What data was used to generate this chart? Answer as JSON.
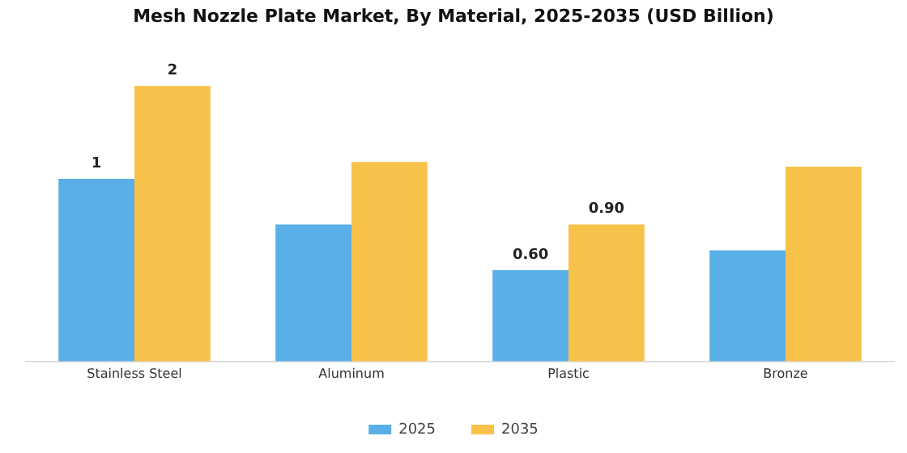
{
  "chart_data": {
    "type": "bar",
    "title": "Mesh Nozzle Plate Market, By Material, 2025-2035 (USD Billion)",
    "categories": [
      "Stainless Steel",
      "Aluminum",
      "Plastic",
      "Bronze"
    ],
    "series": [
      {
        "name": "2025",
        "color": "#5aafe6",
        "values": [
          1.2,
          0.9,
          0.6,
          0.73
        ],
        "value_labels": [
          "1",
          null,
          "0.60",
          null
        ]
      },
      {
        "name": "2035",
        "color": "#f8c14a",
        "values": [
          1.81,
          1.31,
          0.9,
          1.28
        ],
        "value_labels": [
          "2",
          null,
          "0.90",
          null
        ]
      }
    ],
    "legend": "bottom",
    "grid": false
  }
}
